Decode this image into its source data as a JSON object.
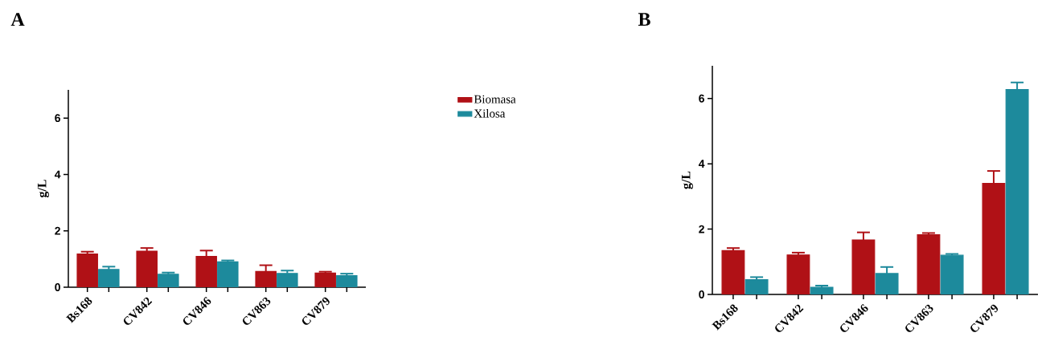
{
  "chart_data": [
    {
      "type": "bar",
      "title": "A",
      "ylabel": "g/L",
      "categories": [
        "Bs168",
        "CV842",
        "CV846",
        "CV863",
        "CV879"
      ],
      "series": [
        {
          "name": "Biomasa",
          "color": "#b01116",
          "values": [
            1.18,
            1.28,
            1.09,
            0.56,
            0.5
          ],
          "errors": [
            0.08,
            0.11,
            0.21,
            0.22,
            0.05
          ]
        },
        {
          "name": "Xilosa",
          "color": "#1d8a9c",
          "values": [
            0.63,
            0.46,
            0.9,
            0.49,
            0.41
          ],
          "errors": [
            0.1,
            0.06,
            0.05,
            0.1,
            0.07
          ]
        }
      ],
      "ylim": [
        0,
        7
      ],
      "yticks": [
        0,
        2,
        4,
        6
      ],
      "legend": "right"
    },
    {
      "type": "bar",
      "title": "B",
      "ylabel": "g/L",
      "categories": [
        "Bs168",
        "CV842",
        "CV846",
        "CV863",
        "CV879"
      ],
      "series": [
        {
          "color": "#b01116",
          "values": [
            1.34,
            1.21,
            1.67,
            1.83,
            3.4
          ],
          "errors": [
            0.08,
            0.07,
            0.23,
            0.05,
            0.38
          ]
        },
        {
          "color": "#1d8a9c",
          "values": [
            0.45,
            0.22,
            0.64,
            1.2,
            6.27
          ],
          "errors": [
            0.08,
            0.05,
            0.2,
            0.04,
            0.22
          ]
        }
      ],
      "ylim": [
        0,
        7
      ],
      "yticks": [
        0,
        2,
        4,
        6
      ]
    }
  ]
}
